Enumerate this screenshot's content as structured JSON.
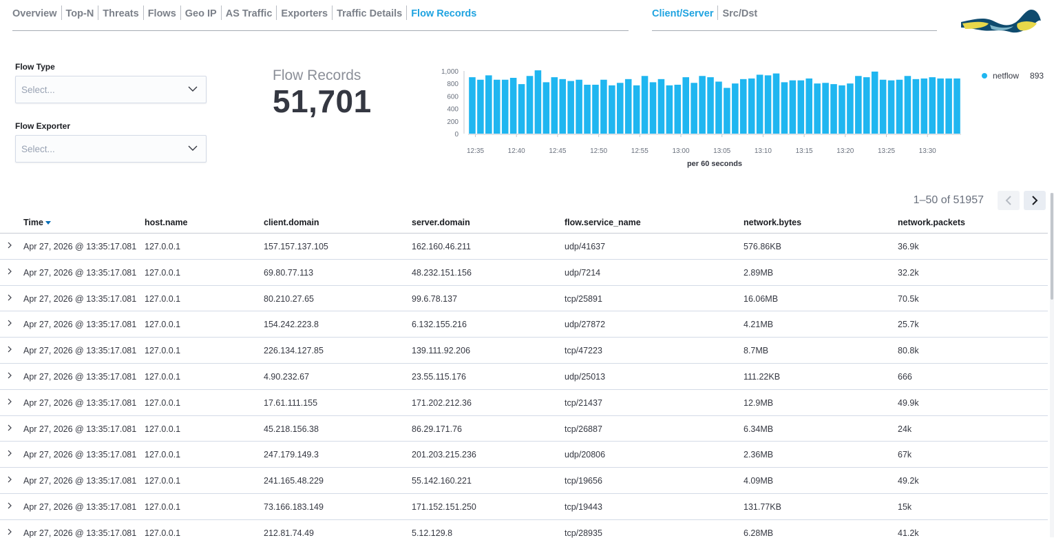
{
  "nav": {
    "tabs": [
      "Overview",
      "Top-N",
      "Threats",
      "Flows",
      "Geo IP",
      "AS Traffic",
      "Exporters",
      "Traffic Details",
      "Flow Records"
    ],
    "active": "Flow Records"
  },
  "view_toggle": {
    "tabs": [
      "Client/Server",
      "Src/Dst"
    ],
    "active": "Client/Server"
  },
  "filters": {
    "flow_type": {
      "label": "Flow Type",
      "placeholder": "Select..."
    },
    "flow_exporter": {
      "label": "Flow Exporter",
      "placeholder": "Select..."
    }
  },
  "metric": {
    "title": "Flow Records",
    "value": "51,701"
  },
  "colors": {
    "accent": "#1fa3e0",
    "bar": "#1fb6f0"
  },
  "chart_data": {
    "type": "bar",
    "xlabel": "per 60 seconds",
    "ylim": [
      0,
      1000
    ],
    "yticks": [
      "0",
      "200",
      "400",
      "600",
      "800",
      "1,000"
    ],
    "xticks": [
      "12:35",
      "12:40",
      "12:45",
      "12:50",
      "12:55",
      "13:00",
      "13:05",
      "13:10",
      "13:15",
      "13:20",
      "13:25",
      "13:30"
    ],
    "series": [
      {
        "name": "netflow",
        "values": [
          900,
          860,
          930,
          860,
          860,
          890,
          790,
          920,
          1010,
          820,
          900,
          870,
          840,
          860,
          780,
          780,
          860,
          770,
          810,
          870,
          770,
          920,
          820,
          870,
          770,
          780,
          900,
          810,
          920,
          900,
          830,
          730,
          800,
          870,
          880,
          940,
          930,
          960,
          820,
          850,
          850,
          880,
          800,
          810,
          790,
          770,
          800,
          920,
          900,
          990,
          860,
          850,
          860,
          920,
          870,
          880,
          900,
          880,
          880,
          880
        ]
      }
    ]
  },
  "legend": {
    "name": "netflow",
    "value": "893"
  },
  "pager": {
    "count": "1–50 of 51957"
  },
  "table": {
    "columns": [
      "Time",
      "host.name",
      "client.domain",
      "server.domain",
      "flow.service_name",
      "network.bytes",
      "network.packets"
    ],
    "rows": [
      [
        "Apr 27, 2026 @ 13:35:17.081",
        "127.0.0.1",
        "157.157.137.105",
        "162.160.46.211",
        "udp/41637",
        "576.86KB",
        "36.9k"
      ],
      [
        "Apr 27, 2026 @ 13:35:17.081",
        "127.0.0.1",
        "69.80.77.113",
        "48.232.151.156",
        "udp/7214",
        "2.89MB",
        "32.2k"
      ],
      [
        "Apr 27, 2026 @ 13:35:17.081",
        "127.0.0.1",
        "80.210.27.65",
        "99.6.78.137",
        "tcp/25891",
        "16.06MB",
        "70.5k"
      ],
      [
        "Apr 27, 2026 @ 13:35:17.081",
        "127.0.0.1",
        "154.242.223.8",
        "6.132.155.216",
        "udp/27872",
        "4.21MB",
        "25.7k"
      ],
      [
        "Apr 27, 2026 @ 13:35:17.081",
        "127.0.0.1",
        "226.134.127.85",
        "139.111.92.206",
        "tcp/47223",
        "8.7MB",
        "80.8k"
      ],
      [
        "Apr 27, 2026 @ 13:35:17.081",
        "127.0.0.1",
        "4.90.232.67",
        "23.55.115.176",
        "udp/25013",
        "111.22KB",
        "666"
      ],
      [
        "Apr 27, 2026 @ 13:35:17.081",
        "127.0.0.1",
        "17.61.111.155",
        "171.202.212.36",
        "tcp/21437",
        "12.9MB",
        "49.9k"
      ],
      [
        "Apr 27, 2026 @ 13:35:17.081",
        "127.0.0.1",
        "45.218.156.38",
        "86.29.171.76",
        "tcp/26887",
        "6.34MB",
        "24k"
      ],
      [
        "Apr 27, 2026 @ 13:35:17.081",
        "127.0.0.1",
        "247.179.149.3",
        "201.203.215.236",
        "udp/20806",
        "2.36MB",
        "67k"
      ],
      [
        "Apr 27, 2026 @ 13:35:17.081",
        "127.0.0.1",
        "241.165.48.229",
        "55.142.160.221",
        "tcp/19656",
        "4.09MB",
        "49.2k"
      ],
      [
        "Apr 27, 2026 @ 13:35:17.081",
        "127.0.0.1",
        "73.166.183.149",
        "171.152.151.250",
        "tcp/19443",
        "131.77KB",
        "15k"
      ],
      [
        "Apr 27, 2026 @ 13:35:17.081",
        "127.0.0.1",
        "212.81.74.49",
        "5.12.129.8",
        "tcp/28935",
        "6.28MB",
        "41.2k"
      ]
    ]
  },
  "icons": {
    "expand": "chevron-right-icon",
    "select": "chevron-down-icon",
    "sort": "sort-down-icon",
    "prev": "chevron-left-icon",
    "next": "chevron-right-icon"
  }
}
